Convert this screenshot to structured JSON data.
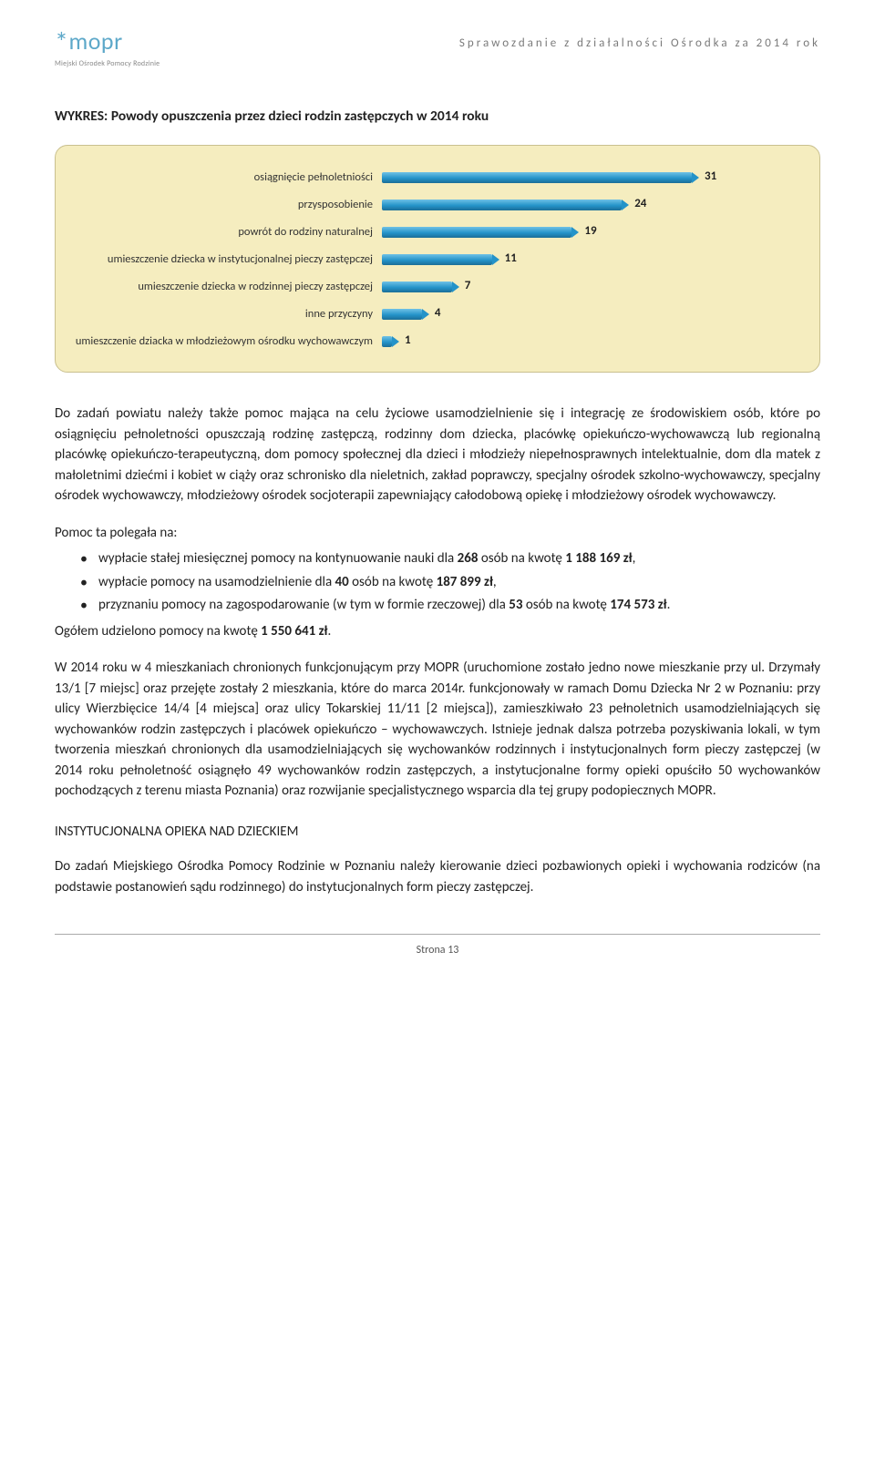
{
  "header": {
    "logo_text": "mopr",
    "logo_sub": "Miejski Ośrodek Pomocy Rodzinie",
    "right": "Sprawozdanie z działalności Ośrodka za 2014 rok"
  },
  "chart": {
    "title": "WYKRES: Powody opuszczenia przez dzieci rodzin zastępczych w 2014 roku",
    "type": "horizontal-bar",
    "max": 31,
    "bar_color_top": "#6fc1e6",
    "bar_color_mid": "#2493c9",
    "bar_color_bot": "#1b6e98",
    "background": "#f5edbf",
    "border_color": "#c9c08f",
    "label_fontsize": 12.5,
    "value_fontsize": 13,
    "rows": [
      {
        "label": "osiągnięcie pełnoletniości",
        "value": 31
      },
      {
        "label": "przysposobienie",
        "value": 24
      },
      {
        "label": "powrót do rodziny naturalnej",
        "value": 19
      },
      {
        "label": "umieszczenie dziecka w instytucjonalnej pieczy zastępczej",
        "value": 11
      },
      {
        "label": "umieszczenie dziecka w rodzinnej pieczy zastępczej",
        "value": 7
      },
      {
        "label": "inne przyczyny",
        "value": 4
      },
      {
        "label": "umieszczenie dziacka w młodzieżowym ośrodku wychowawczym",
        "value": 1
      }
    ]
  },
  "para1": "Do zadań powiatu należy także pomoc mająca na celu życiowe usamodzielnienie się i integrację ze środowiskiem osób, które po osiągnięciu pełnoletności opuszczają rodzinę zastępczą, rodzinny dom dziecka, placówkę opiekuńczo-wychowawczą lub regionalną placówkę opiekuńczo-terapeutyczną, dom pomocy społecznej dla dzieci i młodzieży niepełnosprawnych intelektualnie, dom dla matek z małoletnimi dziećmi i kobiet w ciąży oraz schronisko dla nieletnich, zakład poprawczy, specjalny ośrodek szkolno-wychowawczy, specjalny ośrodek wychowawczy, młodzieżowy ośrodek socjoterapii zapewniający całodobową opiekę i młodzieżowy ośrodek wychowawczy.",
  "list_intro": "Pomoc ta polegała na:",
  "bullets": [
    {
      "pre": "wypłacie stałej miesięcznej pomocy na kontynuowanie nauki dla ",
      "b1": "268",
      "mid1": " osób na kwotę ",
      "b2": "1 188 169 zł",
      "post": ","
    },
    {
      "pre": "wypłacie pomocy na usamodzielnienie dla ",
      "b1": "40",
      "mid1": " osób na kwotę ",
      "b2": "187 899 zł",
      "post": ","
    },
    {
      "pre": "przyznaniu pomocy na zagospodarowanie (w tym w formie rzeczowej) dla ",
      "b1": "53",
      "mid1": " osób na kwotę ",
      "b2": "174 573 zł",
      "post": "."
    }
  ],
  "total_line_pre": "Ogółem udzielono pomocy na kwotę ",
  "total_line_b": "1 550 641 zł",
  "total_line_post": ".",
  "para2": "W 2014 roku w 4 mieszkaniach chronionych funkcjonującym przy MOPR (uruchomione zostało jedno nowe mieszkanie przy ul. Drzymały 13/1 [7 miejsc] oraz przejęte zostały 2 mieszkania, które do marca 2014r. funkcjonowały w ramach Domu Dziecka Nr 2 w Poznaniu: przy ulicy Wierzbięcice 14/4 [4 miejsca] oraz ulicy Tokarskiej 11/11 [2 miejsca]), zamieszkiwało 23 pełnoletnich usamodzielniających się wychowanków rodzin zastępczych i placówek opiekuńczo – wychowawczych. Istnieje jednak dalsza potrzeba pozyskiwania lokali, w tym tworzenia mieszkań chronionych dla usamodzielniających się wychowanków rodzinnych i instytucjonalnych form pieczy zastępczej (w 2014 roku pełnoletność osiągnęło 49 wychowanków rodzin zastępczych, a instytucjonalne formy opieki opuściło 50 wychowanków pochodzących z terenu miasta Poznania) oraz rozwijanie specjalistycznego wsparcia dla tej grupy podopiecznych MOPR.",
  "section_head": "INSTYTUCJONALNA OPIEKA NAD DZIECKIEM",
  "para3": "Do zadań Miejskiego Ośrodka Pomocy Rodzinie w Poznaniu należy kierowanie dzieci pozbawionych opieki i wychowania rodziców (na podstawie postanowień sądu rodzinnego) do instytucjonalnych form pieczy zastępczej.",
  "footer": "Strona 13"
}
